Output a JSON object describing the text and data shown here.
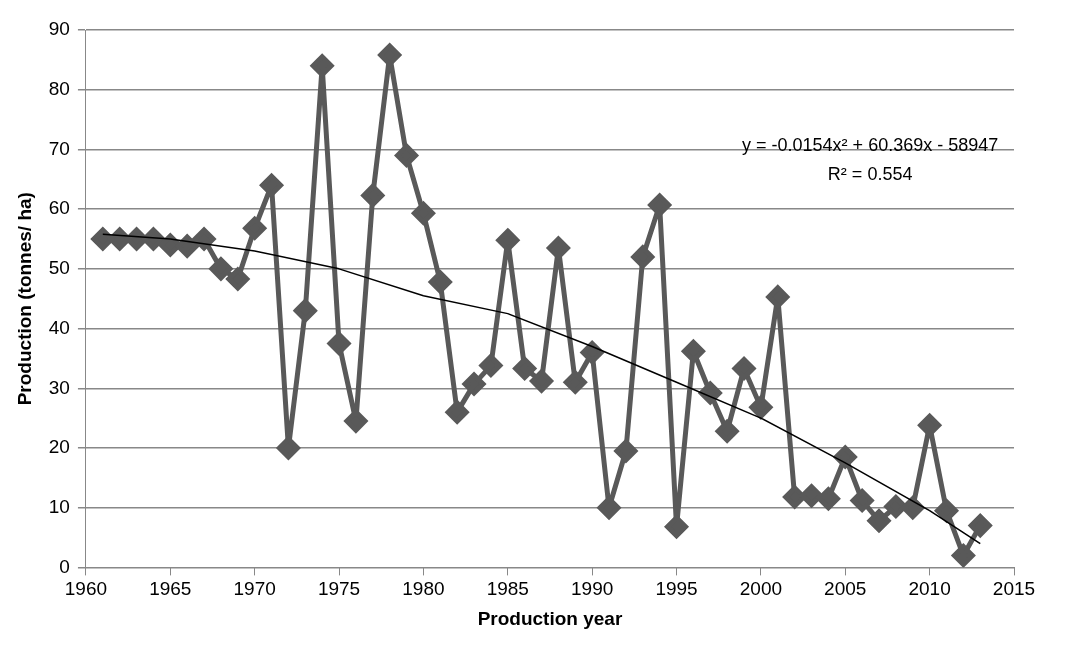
{
  "chart_data": {
    "type": "line",
    "xlabel": "Production year",
    "ylabel": "Production (tonnes/ ha)",
    "x": [
      1961,
      1962,
      1963,
      1964,
      1965,
      1966,
      1967,
      1968,
      1969,
      1970,
      1971,
      1972,
      1973,
      1974,
      1975,
      1976,
      1977,
      1978,
      1979,
      1980,
      1981,
      1982,
      1983,
      1984,
      1985,
      1986,
      1987,
      1988,
      1989,
      1990,
      1991,
      1992,
      1993,
      1994,
      1995,
      1996,
      1997,
      1998,
      1999,
      2000,
      2001,
      2002,
      2003,
      2004,
      2005,
      2006,
      2007,
      2008,
      2009,
      2010,
      2011,
      2012,
      2013
    ],
    "series": [
      {
        "color": "#595959",
        "marker": "diamond",
        "values": [
          55,
          55,
          55,
          55,
          54,
          53.8,
          55,
          50,
          48.3,
          56.8,
          64,
          20,
          43,
          84,
          37.5,
          24.5,
          62.3,
          85.8,
          69,
          59.3,
          47.8,
          26,
          30.7,
          33.8,
          54.8,
          33.3,
          31.2,
          53.5,
          31,
          36,
          10,
          19.5,
          52,
          60.7,
          6.8,
          36.2,
          29.2,
          22.8,
          33.3,
          26.8,
          45.3,
          11.8,
          12,
          11.5,
          18.5,
          11.2,
          7.8,
          10.2,
          10,
          23.8,
          9.5,
          2,
          7
        ]
      },
      {
        "type": "line",
        "color": "#000000",
        "marker": "none",
        "x": [
          1961,
          1965,
          1970,
          1975,
          1980,
          1985,
          1990,
          1995,
          2000,
          2005,
          2010,
          2013
        ],
        "values": [
          55.8,
          55,
          53,
          50,
          45.5,
          42.5,
          37,
          31,
          25,
          17.5,
          9.5,
          4
        ]
      }
    ],
    "annotations": [
      "y = -0.0154x² + 60.369x - 58947",
      "R² = 0.554"
    ],
    "xlim": [
      1960,
      2015
    ],
    "xticks": [
      1960,
      1965,
      1970,
      1975,
      1980,
      1985,
      1990,
      1995,
      2000,
      2005,
      2010,
      2015
    ],
    "ylim": [
      0,
      90
    ],
    "yticks": [
      0,
      10,
      20,
      30,
      40,
      50,
      60,
      70,
      80,
      90
    ],
    "grid": "y",
    "legend": false
  }
}
